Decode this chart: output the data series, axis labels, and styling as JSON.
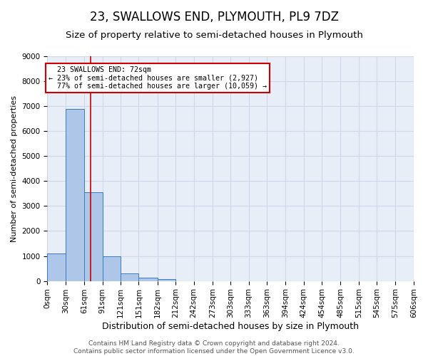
{
  "title": "23, SWALLOWS END, PLYMOUTH, PL9 7DZ",
  "subtitle": "Size of property relative to semi-detached houses in Plymouth",
  "xlabel": "Distribution of semi-detached houses by size in Plymouth",
  "ylabel": "Number of semi-detached properties",
  "bar_color": "#aec6e8",
  "bar_edge_color": "#3a7abf",
  "highlight_line_color": "#cc0000",
  "property_size": 72,
  "property_label": "23 SWALLOWS END: 72sqm",
  "pct_smaller": 23,
  "pct_larger": 77,
  "n_smaller": "2,927",
  "n_larger": "10,059",
  "annotation_box_color": "#cc0000",
  "categories": [
    "0sqm",
    "30sqm",
    "61sqm",
    "91sqm",
    "121sqm",
    "151sqm",
    "182sqm",
    "212sqm",
    "242sqm",
    "273sqm",
    "303sqm",
    "333sqm",
    "363sqm",
    "394sqm",
    "424sqm",
    "454sqm",
    "485sqm",
    "515sqm",
    "545sqm",
    "575sqm",
    "606sqm"
  ],
  "bin_edges": [
    0,
    30,
    61,
    91,
    121,
    151,
    182,
    212,
    242,
    273,
    303,
    333,
    363,
    394,
    424,
    454,
    485,
    515,
    545,
    575,
    606
  ],
  "bar_heights": [
    1100,
    6900,
    3550,
    1000,
    300,
    120,
    80,
    0,
    0,
    0,
    0,
    0,
    0,
    0,
    0,
    0,
    0,
    0,
    0,
    0
  ],
  "ylim": [
    0,
    9000
  ],
  "yticks": [
    0,
    1000,
    2000,
    3000,
    4000,
    5000,
    6000,
    7000,
    8000,
    9000
  ],
  "grid_color": "#d0d8e8",
  "background_color": "#e8eef8",
  "footer_line1": "Contains HM Land Registry data © Crown copyright and database right 2024.",
  "footer_line2": "Contains public sector information licensed under the Open Government Licence v3.0.",
  "title_fontsize": 12,
  "subtitle_fontsize": 9.5,
  "xlabel_fontsize": 9,
  "ylabel_fontsize": 8,
  "tick_fontsize": 7.5,
  "footer_fontsize": 6.5
}
